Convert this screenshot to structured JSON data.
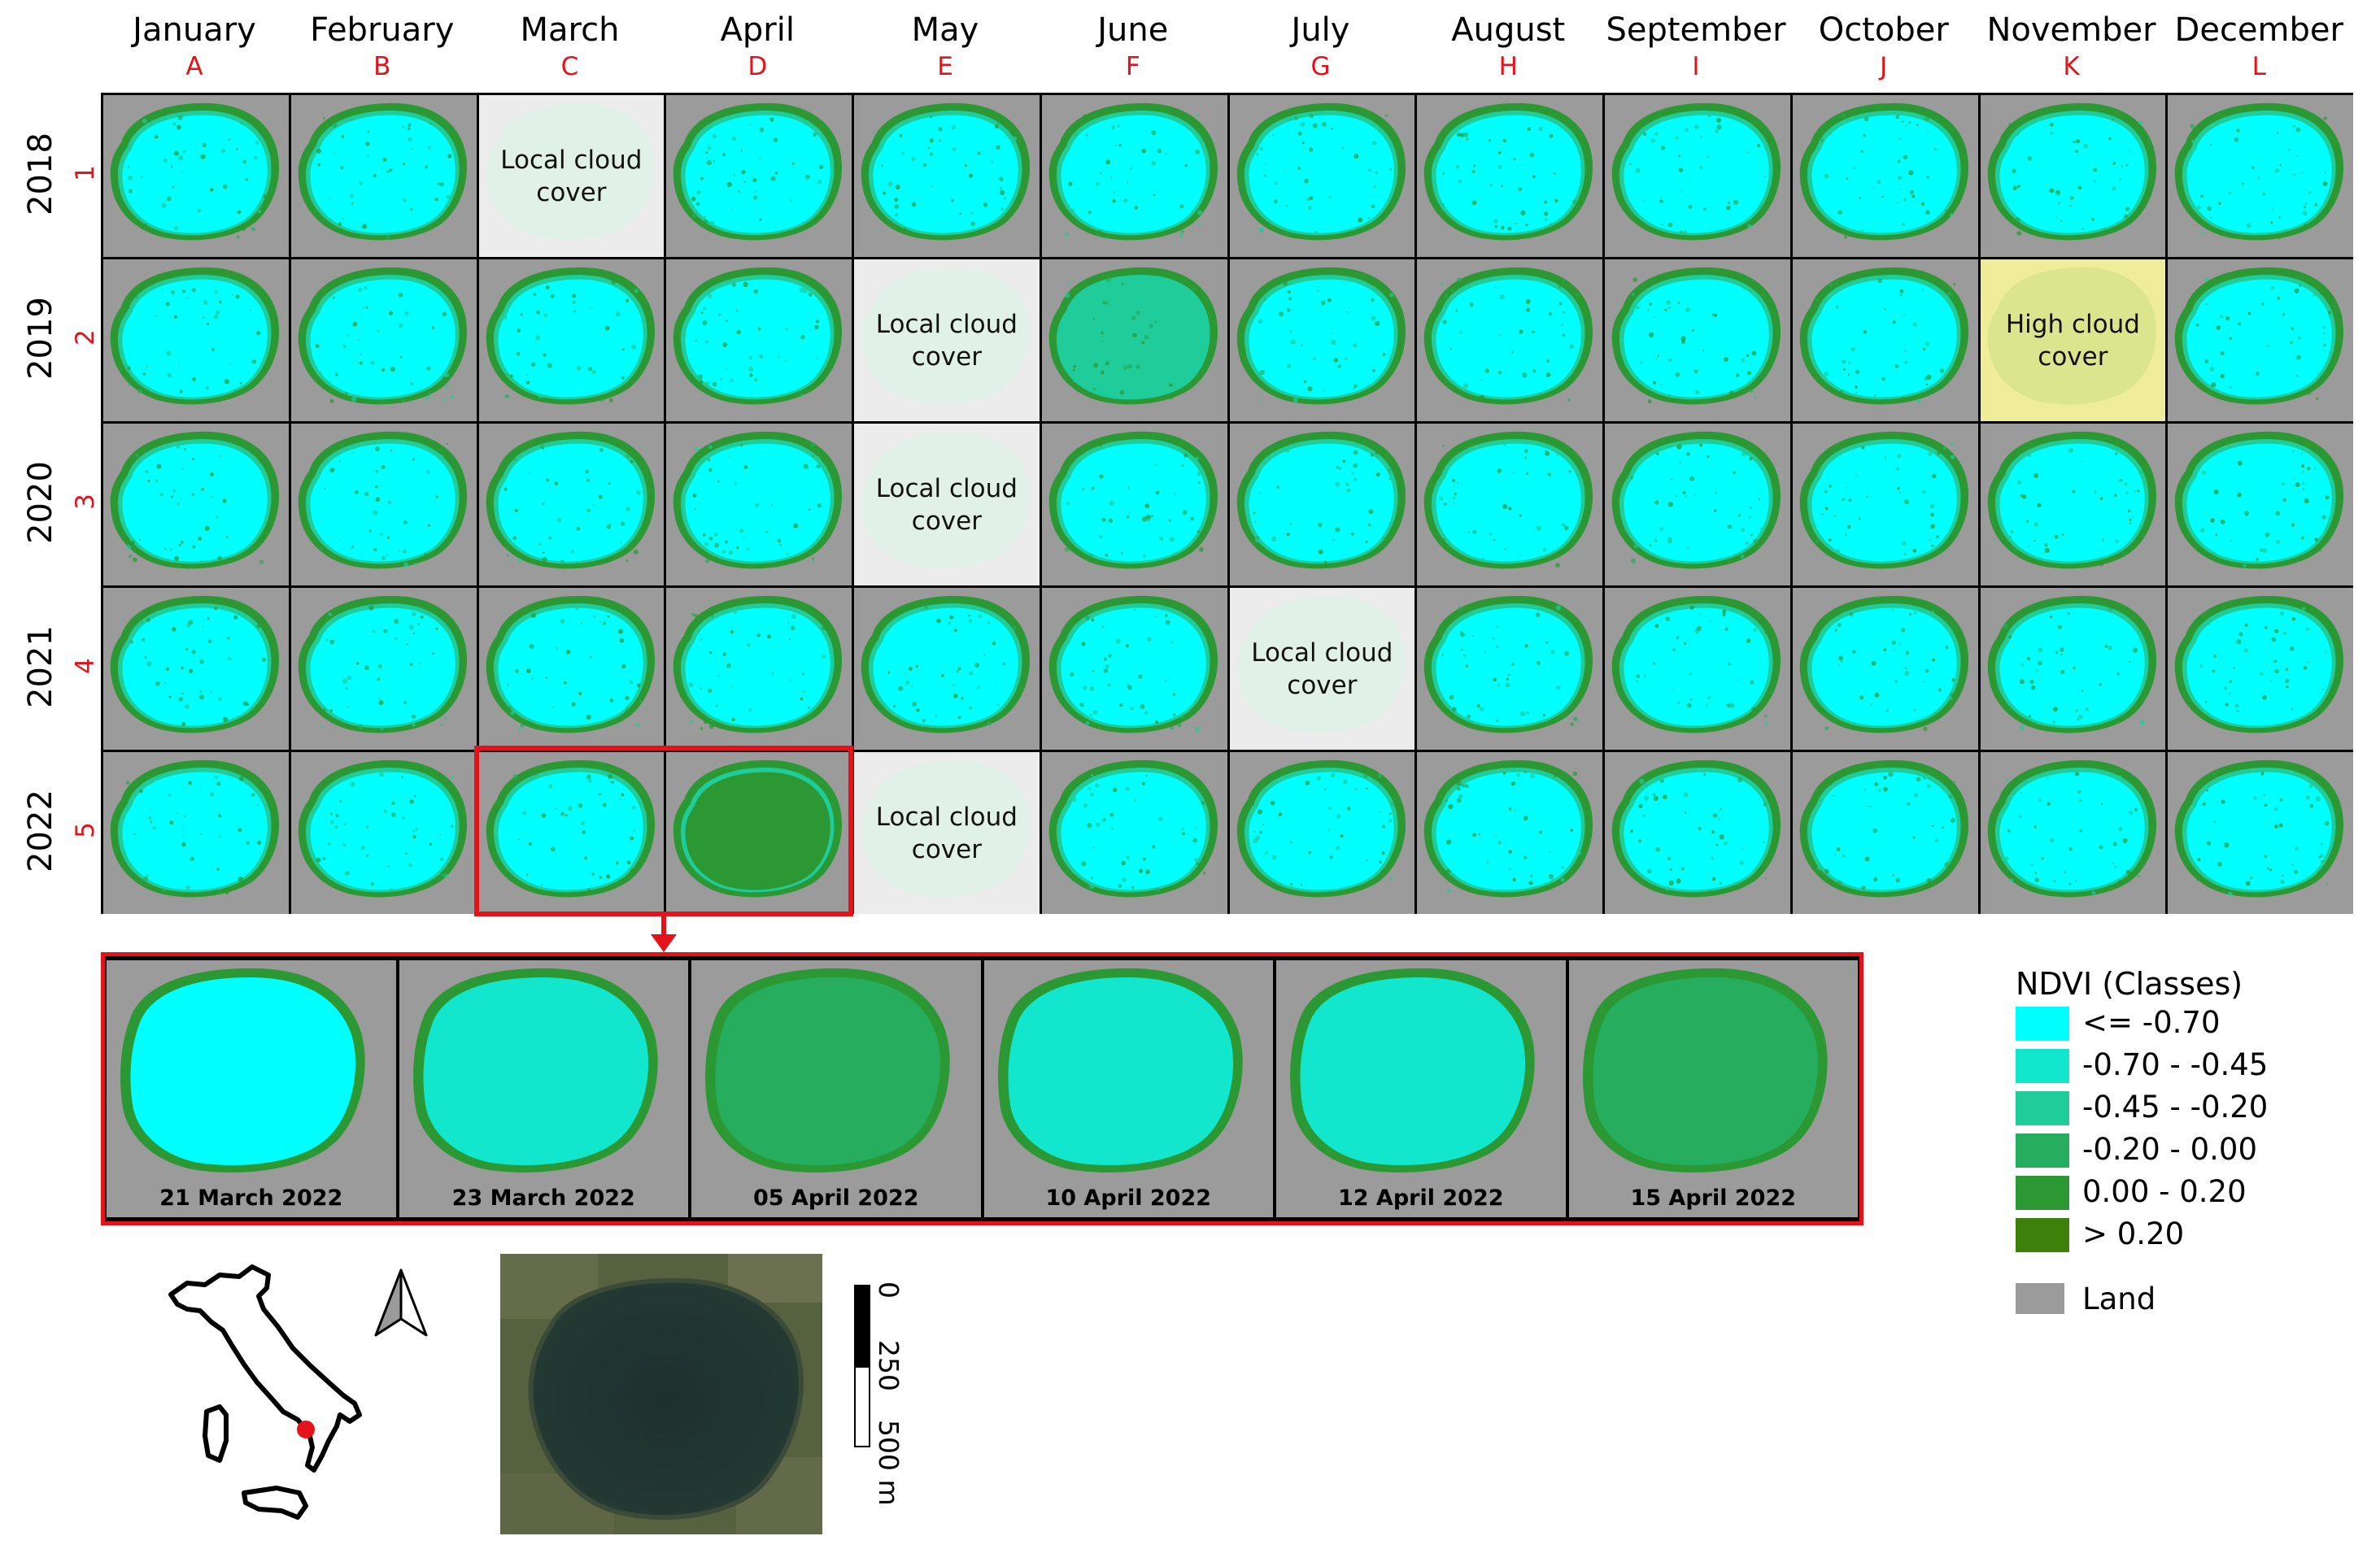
{
  "months": [
    {
      "name": "January",
      "letter": "A"
    },
    {
      "name": "February",
      "letter": "B"
    },
    {
      "name": "March",
      "letter": "C"
    },
    {
      "name": "April",
      "letter": "D"
    },
    {
      "name": "May",
      "letter": "E"
    },
    {
      "name": "June",
      "letter": "F"
    },
    {
      "name": "July",
      "letter": "G"
    },
    {
      "name": "August",
      "letter": "H"
    },
    {
      "name": "September",
      "letter": "I"
    },
    {
      "name": "October",
      "letter": "J"
    },
    {
      "name": "November",
      "letter": "K"
    },
    {
      "name": "December",
      "letter": "L"
    }
  ],
  "years": [
    {
      "year": "2018",
      "row": "1"
    },
    {
      "year": "2019",
      "row": "2"
    },
    {
      "year": "2020",
      "row": "3"
    },
    {
      "year": "2021",
      "row": "4"
    },
    {
      "year": "2022",
      "row": "5"
    }
  ],
  "cloud_cells": {
    "1-C": {
      "line1": "Local cloud",
      "line2": "cover",
      "kind": "local"
    },
    "2-E": {
      "line1": "Local cloud",
      "line2": "cover",
      "kind": "local"
    },
    "2-K": {
      "line1": "High cloud",
      "line2": "cover",
      "kind": "high"
    },
    "3-E": {
      "line1": "Local cloud",
      "line2": "cover",
      "kind": "local"
    },
    "4-G": {
      "line1": "Local cloud",
      "line2": "cover",
      "kind": "local"
    },
    "5-E": {
      "line1": "Local cloud",
      "line2": "cover",
      "kind": "local"
    }
  },
  "highlighted_cells": [
    "5-C",
    "5-D"
  ],
  "zoom_panels": [
    {
      "date": "21 March 2022",
      "ndvi_class": "<= -0.70"
    },
    {
      "date": "23 March 2022",
      "ndvi_class": "-0.70 - -0.45"
    },
    {
      "date": "05 April 2022",
      "ndvi_class": "-0.20 - 0.00"
    },
    {
      "date": "10 April 2022",
      "ndvi_class": "-0.70 - -0.45"
    },
    {
      "date": "12 April 2022",
      "ndvi_class": "-0.70 - -0.45"
    },
    {
      "date": "15 April 2022",
      "ndvi_class": "-0.20 - 0.00"
    }
  ],
  "legend": {
    "title": "NDVI (Classes)",
    "classes": [
      {
        "label": "<= -0.70",
        "color": "#00ffff"
      },
      {
        "label": "-0.70 - -0.45",
        "color": "#12e6cc"
      },
      {
        "label": "-0.45 - -0.20",
        "color": "#1fcc9a"
      },
      {
        "label": "-0.20 - 0.00",
        "color": "#26ad5e"
      },
      {
        "label": "0.00 - 0.20",
        "color": "#2b9833"
      },
      {
        "label": "> 0.20",
        "color": "#3d800b"
      }
    ],
    "land": {
      "label": "Land",
      "color": "#9b9b9b"
    }
  },
  "scale_bar": {
    "ticks": [
      "0",
      "250",
      "500 m"
    ]
  },
  "colors": {
    "accent": "#e3121b",
    "land": "#9b9b9b",
    "local_cloud": "#ececec",
    "high_cloud": "#efec9a"
  },
  "icons": {
    "north_arrow": "north-arrow-icon",
    "locator": "italy-locator-map"
  }
}
